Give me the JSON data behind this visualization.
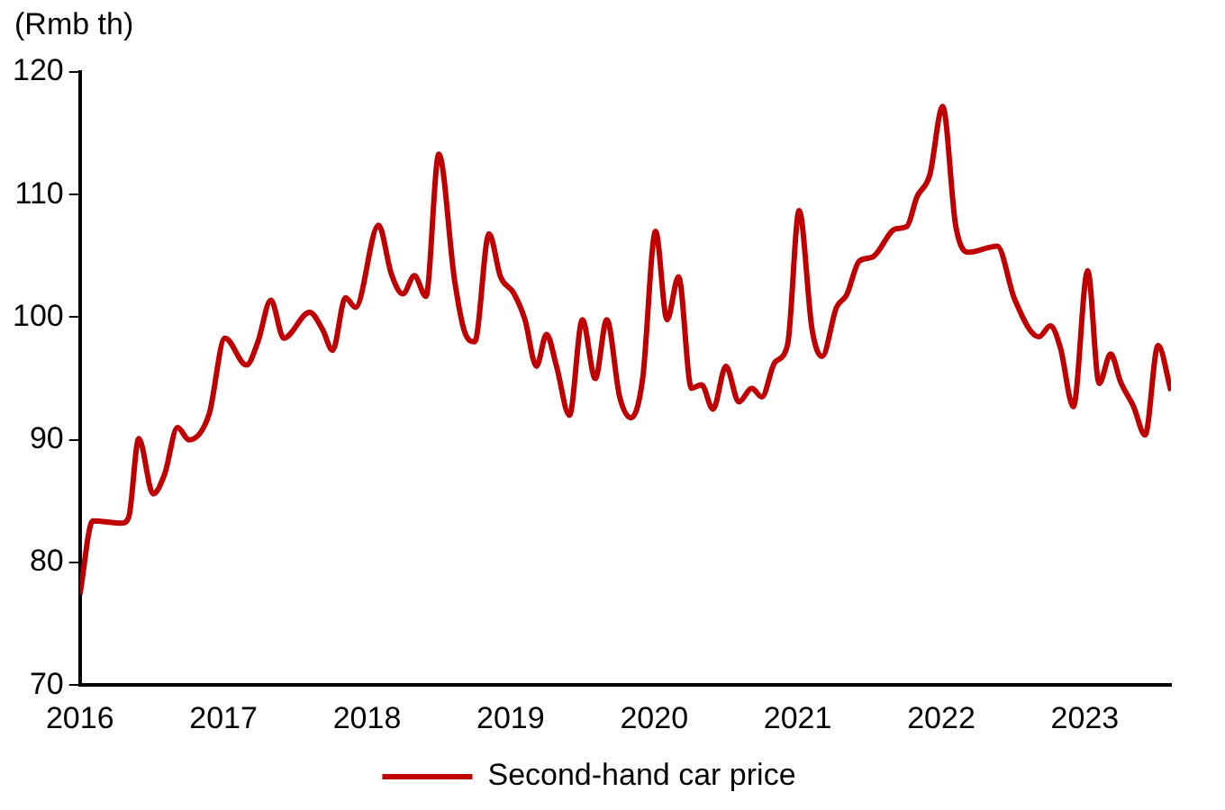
{
  "chart_data": {
    "type": "line",
    "ylabel": "(Rmb th)",
    "xlim": [
      2016,
      2023.6
    ],
    "xticks": [
      2016,
      2017,
      2018,
      2019,
      2020,
      2021,
      2022,
      2023
    ],
    "ylim": [
      70,
      120
    ],
    "yticks": [
      70,
      80,
      90,
      100,
      110,
      120
    ],
    "grid": false,
    "legend": "bottom",
    "marker": "none",
    "x": [
      2016.0,
      2016.09,
      2016.29,
      2016.34,
      2016.41,
      2016.51,
      2016.59,
      2016.68,
      2016.76,
      2016.9,
      2017.01,
      2017.16,
      2017.24,
      2017.33,
      2017.42,
      2017.6,
      2017.69,
      2017.76,
      2017.85,
      2017.92,
      2018.08,
      2018.17,
      2018.25,
      2018.33,
      2018.41,
      2018.5,
      2018.61,
      2018.68,
      2018.75,
      2018.85,
      2018.93,
      2019.02,
      2019.1,
      2019.18,
      2019.25,
      2019.32,
      2019.41,
      2019.5,
      2019.59,
      2019.67,
      2019.76,
      2019.84,
      2019.92,
      2020.01,
      2020.09,
      2020.17,
      2020.26,
      2020.33,
      2020.41,
      2020.5,
      2020.59,
      2020.68,
      2020.75,
      2020.84,
      2020.93,
      2021.01,
      2021.1,
      2021.17,
      2021.27,
      2021.34,
      2021.43,
      2021.52,
      2021.68,
      2021.76,
      2021.83,
      2021.92,
      2022.01,
      2022.1,
      2022.19,
      2022.39,
      2022.51,
      2022.68,
      2022.76,
      2022.83,
      2022.92,
      2023.02,
      2023.1,
      2023.18,
      2023.25,
      2023.34,
      2023.42,
      2023.51,
      2023.6
    ],
    "series": [
      {
        "name": "Second-hand car price",
        "color": "#c00000",
        "values": [
          77.4,
          83.4,
          83.2,
          83.7,
          90.1,
          85.6,
          87.2,
          91.0,
          90.0,
          92.1,
          98.3,
          96.1,
          98.0,
          101.4,
          98.3,
          100.4,
          99.0,
          97.3,
          101.6,
          100.8,
          107.5,
          103.5,
          101.9,
          103.4,
          101.7,
          113.3,
          103.0,
          98.8,
          98.0,
          106.8,
          103.3,
          102.0,
          99.8,
          96.0,
          98.6,
          96.0,
          92.0,
          99.8,
          95.0,
          99.8,
          93.5,
          91.8,
          95.0,
          107.0,
          99.8,
          103.3,
          94.2,
          94.5,
          92.5,
          96.0,
          93.1,
          94.2,
          93.5,
          96.3,
          97.8,
          108.7,
          99.0,
          96.8,
          100.8,
          101.8,
          104.6,
          104.9,
          107.2,
          107.4,
          109.8,
          111.6,
          117.2,
          107.5,
          105.3,
          105.8,
          101.5,
          98.4,
          99.3,
          97.5,
          92.7,
          103.8,
          94.6,
          97.0,
          94.7,
          92.7,
          90.4,
          97.7,
          94.0
        ]
      }
    ]
  }
}
